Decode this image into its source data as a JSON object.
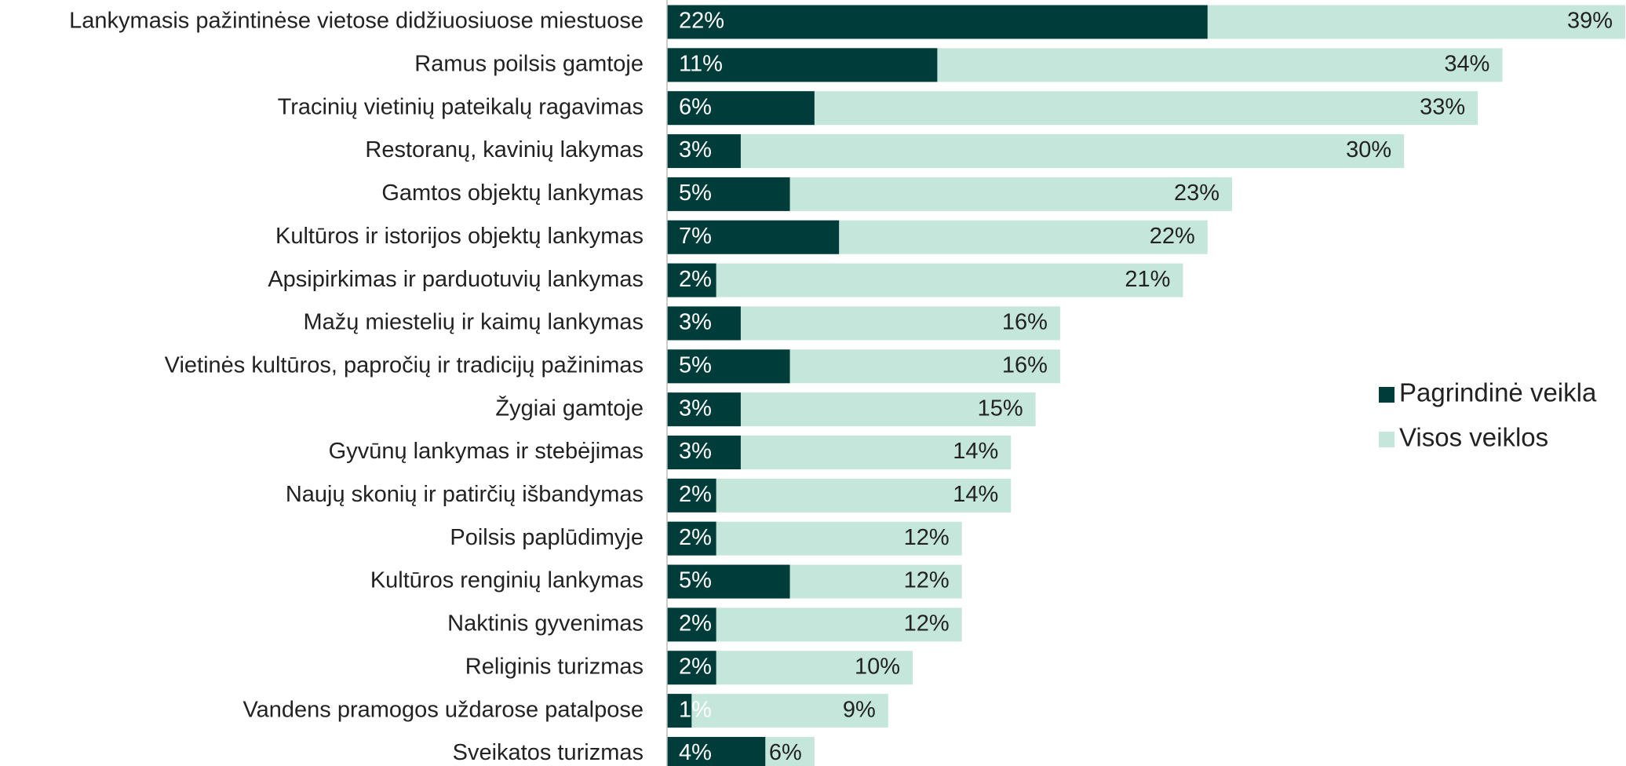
{
  "chart_data": {
    "type": "bar",
    "orientation": "horizontal",
    "overlap": true,
    "categories": [
      "Lankymasis pažintinėse vietose didžiuosiuose miestuose",
      "Ramus poilsis gamtoje",
      "Tracinių vietinių pateikalų ragavimas",
      "Restoranų, kavinių lakymas",
      "Gamtos objektų lankymas",
      "Kultūros ir istorijos objektų lankymas",
      "Apsipirkimas ir parduotuvių lankymas",
      "Mažų miestelių ir kaimų lankymas",
      "Vietinės kultūros, papročių ir tradicijų pažinimas",
      "Žygiai gamtoje",
      "Gyvūnų lankymas ir stebėjimas",
      "Naujų skonių ir patirčių išbandymas",
      "Poilsis paplūdimyje",
      "Kultūros renginių lankymas",
      "Naktinis gyvenimas",
      "Religinis turizmas",
      "Vandens pramogos uždarose patalpose",
      "Sveikatos turizmas"
    ],
    "series": [
      {
        "name": "Visos veiklos",
        "color": "#c5e6da",
        "values": [
          39,
          34,
          33,
          30,
          23,
          22,
          21,
          16,
          16,
          15,
          14,
          14,
          12,
          12,
          12,
          10,
          9,
          6
        ],
        "value_labels": [
          "39%",
          "34%",
          "33%",
          "30%",
          "23%",
          "22%",
          "21%",
          "16%",
          "16%",
          "15%",
          "14%",
          "14%",
          "12%",
          "12%",
          "12%",
          "10%",
          "9%",
          "6%"
        ]
      },
      {
        "name": "Pagrindinė veikla",
        "color": "#003d3a",
        "values": [
          22,
          11,
          6,
          3,
          5,
          7,
          2,
          3,
          5,
          3,
          3,
          2,
          2,
          5,
          2,
          2,
          1,
          4
        ],
        "value_labels": [
          "22%",
          "11%",
          "6%",
          "3%",
          "5%",
          "7%",
          "2%",
          "3%",
          "5%",
          "3%",
          "3%",
          "2%",
          "2%",
          "5%",
          "2%",
          "2%",
          "1%",
          "4%"
        ]
      }
    ],
    "legend": "right"
  }
}
